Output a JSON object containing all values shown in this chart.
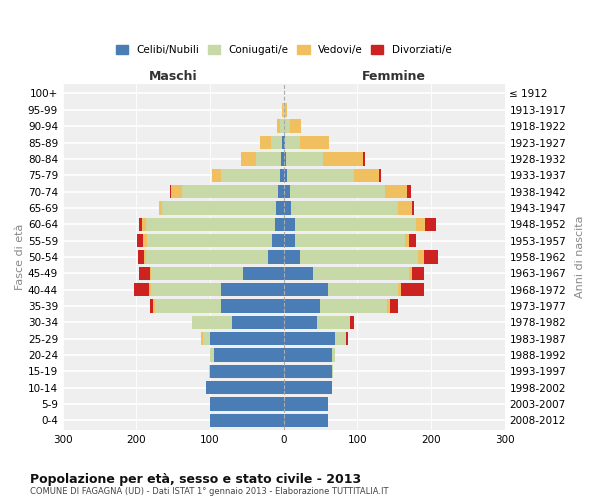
{
  "age_groups": [
    "0-4",
    "5-9",
    "10-14",
    "15-19",
    "20-24",
    "25-29",
    "30-34",
    "35-39",
    "40-44",
    "45-49",
    "50-54",
    "55-59",
    "60-64",
    "65-69",
    "70-74",
    "75-79",
    "80-84",
    "85-89",
    "90-94",
    "95-99",
    "100+"
  ],
  "birth_years": [
    "2008-2012",
    "2003-2007",
    "1998-2002",
    "1993-1997",
    "1988-1992",
    "1983-1987",
    "1978-1982",
    "1973-1977",
    "1968-1972",
    "1963-1967",
    "1958-1962",
    "1953-1957",
    "1948-1952",
    "1943-1947",
    "1938-1942",
    "1933-1937",
    "1928-1932",
    "1923-1927",
    "1918-1922",
    "1913-1917",
    "≤ 1912"
  ],
  "male": {
    "celibi": [
      100,
      100,
      105,
      100,
      95,
      100,
      70,
      85,
      85,
      55,
      22,
      16,
      12,
      10,
      8,
      5,
      3,
      2,
      0,
      0,
      0
    ],
    "coniugati": [
      0,
      0,
      0,
      2,
      5,
      10,
      55,
      90,
      95,
      125,
      165,
      170,
      175,
      155,
      130,
      80,
      35,
      15,
      5,
      1,
      0
    ],
    "vedovi": [
      0,
      0,
      0,
      0,
      0,
      2,
      0,
      2,
      3,
      2,
      3,
      5,
      5,
      5,
      15,
      12,
      20,
      15,
      4,
      1,
      0
    ],
    "divorziati": [
      0,
      0,
      0,
      0,
      0,
      0,
      0,
      5,
      20,
      15,
      8,
      8,
      5,
      0,
      2,
      0,
      0,
      0,
      0,
      0,
      0
    ]
  },
  "female": {
    "nubili": [
      60,
      60,
      65,
      65,
      65,
      70,
      45,
      50,
      60,
      40,
      22,
      15,
      15,
      10,
      8,
      5,
      3,
      2,
      0,
      0,
      0
    ],
    "coniugate": [
      0,
      0,
      0,
      2,
      5,
      15,
      45,
      90,
      95,
      130,
      160,
      150,
      165,
      145,
      130,
      90,
      50,
      20,
      8,
      2,
      0
    ],
    "vedove": [
      0,
      0,
      0,
      0,
      0,
      0,
      0,
      5,
      5,
      5,
      8,
      5,
      12,
      20,
      30,
      35,
      55,
      40,
      15,
      2,
      0
    ],
    "divorziate": [
      0,
      0,
      0,
      0,
      0,
      2,
      5,
      10,
      30,
      15,
      20,
      10,
      15,
      2,
      5,
      2,
      2,
      0,
      0,
      0,
      0
    ]
  },
  "colors": {
    "celibi": "#4a7db5",
    "coniugati": "#c8d9a8",
    "vedovi": "#f0c060",
    "divorziati": "#cc2222"
  },
  "title": "Popolazione per età, sesso e stato civile - 2013",
  "subtitle": "COMUNE DI FAGAGNA (UD) - Dati ISTAT 1° gennaio 2013 - Elaborazione TUTTITALIA.IT",
  "xlabel_left": "Maschi",
  "xlabel_right": "Femmine",
  "ylabel_left": "Fasce di età",
  "ylabel_right": "Anni di nascita",
  "xlim": 300,
  "background_color": "#ffffff",
  "plot_bg_color": "#efefef",
  "grid_color": "#ffffff",
  "legend_labels": [
    "Celibi/Nubili",
    "Coniugati/e",
    "Vedovi/e",
    "Divorziati/e"
  ]
}
